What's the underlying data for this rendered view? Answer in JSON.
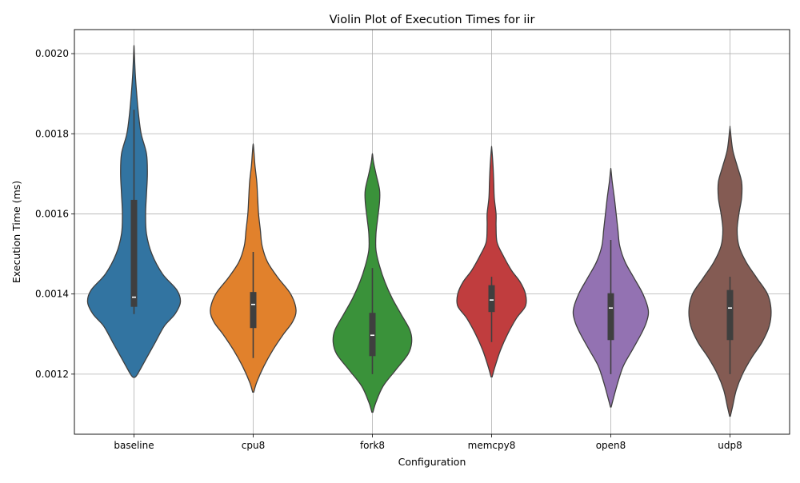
{
  "chart_data": {
    "type": "violin",
    "title": "Violin Plot of Execution Times for iir",
    "xlabel": "Configuration",
    "ylabel": "Execution Time (ms)",
    "ylim": [
      0.00105,
      0.00206
    ],
    "yticks": [
      0.0012,
      0.0014,
      0.0016,
      0.0018,
      0.002
    ],
    "ytick_labels": [
      "0.0012",
      "0.0014",
      "0.0016",
      "0.0018",
      "0.0020"
    ],
    "grid": true,
    "categories": [
      "baseline",
      "cpu8",
      "fork8",
      "memcpy8",
      "open8",
      "udp8"
    ],
    "series": [
      {
        "category": "baseline",
        "color": "#3274a1",
        "min": 0.00135,
        "q1": 0.001368,
        "median": 0.001392,
        "q3": 0.001635,
        "max": 0.00186,
        "kde_min": 0.001192,
        "kde_max": 0.002018,
        "density": [
          [
            0.001192,
            0.005
          ],
          [
            0.0012,
            0.02
          ],
          [
            0.00124,
            0.07
          ],
          [
            0.00128,
            0.12
          ],
          [
            0.00132,
            0.17
          ],
          [
            0.00135,
            0.23
          ],
          [
            0.00138,
            0.26
          ],
          [
            0.00141,
            0.24
          ],
          [
            0.00145,
            0.16
          ],
          [
            0.0015,
            0.1
          ],
          [
            0.00155,
            0.07
          ],
          [
            0.0016,
            0.065
          ],
          [
            0.00165,
            0.07
          ],
          [
            0.0017,
            0.075
          ],
          [
            0.00175,
            0.07
          ],
          [
            0.0018,
            0.04
          ],
          [
            0.00185,
            0.025
          ],
          [
            0.0019,
            0.015
          ],
          [
            0.00195,
            0.007
          ],
          [
            0.002,
            0.002
          ],
          [
            0.002018,
            0.0005
          ]
        ]
      },
      {
        "category": "cpu8",
        "color": "#e1812c",
        "min": 0.00124,
        "q1": 0.001315,
        "median": 0.001374,
        "q3": 0.001405,
        "max": 0.001505,
        "kde_min": 0.001155,
        "kde_max": 0.001772,
        "density": [
          [
            0.001155,
            0.003
          ],
          [
            0.00118,
            0.02
          ],
          [
            0.00122,
            0.06
          ],
          [
            0.00126,
            0.11
          ],
          [
            0.0013,
            0.17
          ],
          [
            0.00133,
            0.22
          ],
          [
            0.00136,
            0.24
          ],
          [
            0.0014,
            0.21
          ],
          [
            0.00144,
            0.14
          ],
          [
            0.00148,
            0.08
          ],
          [
            0.00152,
            0.05
          ],
          [
            0.00156,
            0.04
          ],
          [
            0.0016,
            0.03
          ],
          [
            0.00164,
            0.025
          ],
          [
            0.00168,
            0.02
          ],
          [
            0.00172,
            0.01
          ],
          [
            0.00175,
            0.005
          ],
          [
            0.001772,
            0.001
          ]
        ]
      },
      {
        "category": "fork8",
        "color": "#3a923a",
        "min": 0.0012,
        "q1": 0.001245,
        "median": 0.001297,
        "q3": 0.001353,
        "max": 0.001465,
        "kde_min": 0.001105,
        "kde_max": 0.001748,
        "density": [
          [
            0.001105,
            0.003
          ],
          [
            0.00113,
            0.02
          ],
          [
            0.00117,
            0.06
          ],
          [
            0.00121,
            0.13
          ],
          [
            0.00125,
            0.2
          ],
          [
            0.00128,
            0.22
          ],
          [
            0.00131,
            0.21
          ],
          [
            0.00135,
            0.16
          ],
          [
            0.00139,
            0.11
          ],
          [
            0.00143,
            0.07
          ],
          [
            0.00147,
            0.04
          ],
          [
            0.00151,
            0.02
          ],
          [
            0.00155,
            0.02
          ],
          [
            0.00159,
            0.03
          ],
          [
            0.00163,
            0.04
          ],
          [
            0.00166,
            0.04
          ],
          [
            0.0017,
            0.02
          ],
          [
            0.00173,
            0.006
          ],
          [
            0.001748,
            0.001
          ]
        ]
      },
      {
        "category": "memcpy8",
        "color": "#c03d3e",
        "min": 0.00128,
        "q1": 0.001355,
        "median": 0.001385,
        "q3": 0.001422,
        "max": 0.001443,
        "kde_min": 0.001193,
        "kde_max": 0.001763,
        "density": [
          [
            0.001193,
            0.003
          ],
          [
            0.00122,
            0.02
          ],
          [
            0.00126,
            0.05
          ],
          [
            0.0013,
            0.09
          ],
          [
            0.00134,
            0.14
          ],
          [
            0.00137,
            0.19
          ],
          [
            0.0014,
            0.19
          ],
          [
            0.00143,
            0.16
          ],
          [
            0.00146,
            0.11
          ],
          [
            0.0015,
            0.06
          ],
          [
            0.00153,
            0.03
          ],
          [
            0.00157,
            0.025
          ],
          [
            0.0016,
            0.025
          ],
          [
            0.00164,
            0.015
          ],
          [
            0.00168,
            0.012
          ],
          [
            0.00172,
            0.008
          ],
          [
            0.001763,
            0.001
          ]
        ]
      },
      {
        "category": "open8",
        "color": "#9372b2",
        "min": 0.0012,
        "q1": 0.001285,
        "median": 0.001365,
        "q3": 0.001402,
        "max": 0.001535,
        "kde_min": 0.001118,
        "kde_max": 0.00171,
        "density": [
          [
            0.001118,
            0.002
          ],
          [
            0.00114,
            0.015
          ],
          [
            0.00118,
            0.04
          ],
          [
            0.00122,
            0.07
          ],
          [
            0.00126,
            0.12
          ],
          [
            0.0013,
            0.17
          ],
          [
            0.00133,
            0.2
          ],
          [
            0.00136,
            0.21
          ],
          [
            0.0014,
            0.18
          ],
          [
            0.00144,
            0.13
          ],
          [
            0.00148,
            0.08
          ],
          [
            0.00152,
            0.05
          ],
          [
            0.00156,
            0.04
          ],
          [
            0.0016,
            0.03
          ],
          [
            0.00164,
            0.02
          ],
          [
            0.00168,
            0.008
          ],
          [
            0.00171,
            0.001
          ]
        ]
      },
      {
        "category": "udp8",
        "color": "#845b53",
        "min": 0.0012,
        "q1": 0.001285,
        "median": 0.001365,
        "q3": 0.00141,
        "max": 0.001443,
        "kde_min": 0.001095,
        "kde_max": 0.001812,
        "density": [
          [
            0.001095,
            0.002
          ],
          [
            0.00112,
            0.015
          ],
          [
            0.00116,
            0.035
          ],
          [
            0.0012,
            0.07
          ],
          [
            0.00124,
            0.12
          ],
          [
            0.00128,
            0.18
          ],
          [
            0.00132,
            0.22
          ],
          [
            0.00136,
            0.23
          ],
          [
            0.0014,
            0.21
          ],
          [
            0.00144,
            0.15
          ],
          [
            0.00148,
            0.09
          ],
          [
            0.00152,
            0.05
          ],
          [
            0.00156,
            0.04
          ],
          [
            0.0016,
            0.05
          ],
          [
            0.00164,
            0.065
          ],
          [
            0.00168,
            0.065
          ],
          [
            0.00172,
            0.04
          ],
          [
            0.00176,
            0.015
          ],
          [
            0.001812,
            0.001
          ]
        ]
      }
    ]
  }
}
